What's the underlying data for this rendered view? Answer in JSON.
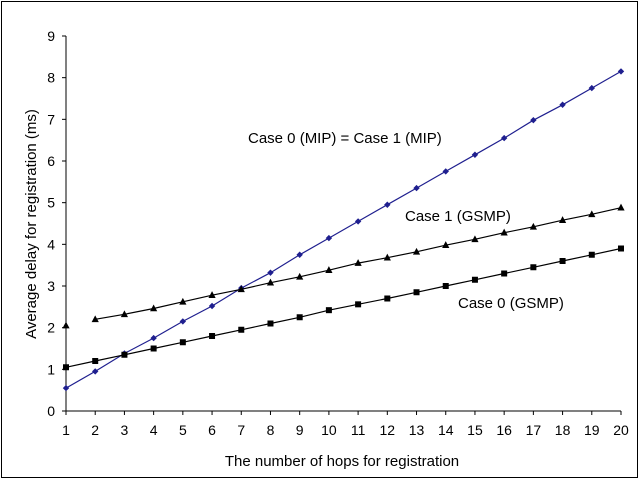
{
  "chart_data": {
    "type": "line",
    "title": "",
    "xlabel": "The number of hops for registration",
    "ylabel": "Average delay for registration (ms)",
    "x": [
      1,
      2,
      3,
      4,
      5,
      6,
      7,
      8,
      9,
      10,
      11,
      12,
      13,
      14,
      15,
      16,
      17,
      18,
      19,
      20
    ],
    "xlim": [
      1,
      20
    ],
    "ylim": [
      0,
      9
    ],
    "x_ticks": [
      "1",
      "2",
      "3",
      "4",
      "5",
      "6",
      "7",
      "8",
      "9",
      "10",
      "11",
      "12",
      "13",
      "14",
      "15",
      "16",
      "17",
      "18",
      "19",
      "20"
    ],
    "y_ticks": [
      "0",
      "1",
      "2",
      "3",
      "4",
      "5",
      "6",
      "7",
      "8",
      "9"
    ],
    "grid": false,
    "legend": "none",
    "series": [
      {
        "name": "Case 0 (MIP) = Case 1 (MIP)",
        "marker": "diamond",
        "color": "#1f1f8f",
        "values": [
          0.55,
          0.95,
          1.38,
          1.75,
          2.15,
          2.52,
          2.95,
          3.32,
          3.75,
          4.15,
          4.55,
          4.95,
          5.35,
          5.75,
          6.15,
          6.55,
          6.98,
          7.35,
          7.75,
          8.15
        ]
      },
      {
        "name": "Case 1 (GSMP)",
        "marker": "triangle",
        "color": "#000000",
        "values": [
          2.05,
          2.2,
          2.32,
          2.46,
          2.62,
          2.78,
          2.92,
          3.08,
          3.22,
          3.38,
          3.55,
          3.68,
          3.82,
          3.98,
          4.12,
          4.28,
          4.42,
          4.58,
          4.72,
          4.88
        ]
      },
      {
        "name": "Case 0 (GSMP)",
        "marker": "square",
        "color": "#000000",
        "values": [
          1.05,
          1.2,
          1.35,
          1.5,
          1.65,
          1.8,
          1.95,
          2.1,
          2.25,
          2.42,
          2.56,
          2.7,
          2.85,
          3.0,
          3.15,
          3.3,
          3.45,
          3.6,
          3.75,
          3.9
        ]
      }
    ]
  }
}
